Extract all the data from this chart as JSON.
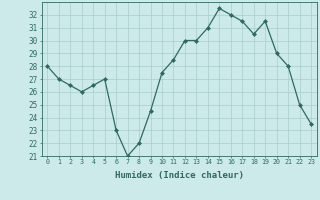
{
  "x": [
    0,
    1,
    2,
    3,
    4,
    5,
    6,
    7,
    8,
    9,
    10,
    11,
    12,
    13,
    14,
    15,
    16,
    17,
    18,
    19,
    20,
    21,
    22,
    23
  ],
  "y": [
    28,
    27,
    26.5,
    26,
    26.5,
    27,
    23,
    21,
    22,
    24.5,
    27.5,
    28.5,
    30,
    30,
    31,
    32.5,
    32,
    31.5,
    30.5,
    31.5,
    29,
    28,
    25,
    23.5
  ],
  "line_color": "#2e6b5e",
  "marker": "D",
  "markersize": 2.0,
  "linewidth": 0.9,
  "bg_color": "#cceaea",
  "grid_color": "#aacccc",
  "xlabel": "Humidex (Indice chaleur)",
  "ylim": [
    21,
    33
  ],
  "xlim": [
    -0.5,
    23.5
  ],
  "yticks": [
    21,
    22,
    23,
    24,
    25,
    26,
    27,
    28,
    29,
    30,
    31,
    32
  ],
  "xticks": [
    0,
    1,
    2,
    3,
    4,
    5,
    6,
    7,
    8,
    9,
    10,
    11,
    12,
    13,
    14,
    15,
    16,
    17,
    18,
    19,
    20,
    21,
    22,
    23
  ],
  "tick_color": "#2e6b5e",
  "label_color": "#2e6b5e",
  "xlabel_fontsize": 6.5,
  "ytick_fontsize": 5.5,
  "xtick_fontsize": 4.8
}
